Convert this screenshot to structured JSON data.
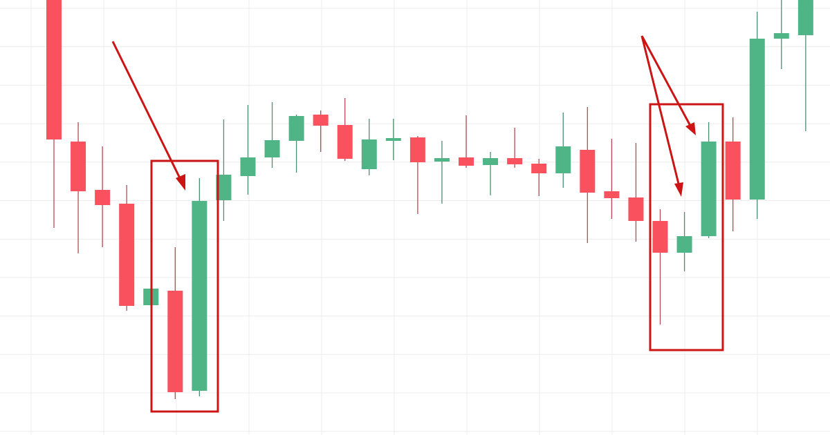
{
  "chart_data": {
    "type": "candlestick",
    "title": "",
    "xlabel": "",
    "ylabel": "",
    "grid": true,
    "colors": {
      "up": "#4fb587",
      "down": "#f9515e",
      "wick_up": "#4a8f6e",
      "wick_down": "#b54a55",
      "annotation": "#cc1414",
      "grid": "#ececec"
    },
    "ylim": [
      0,
      63
    ],
    "candles": [
      {
        "o": 64,
        "h": 64,
        "l": 30,
        "c": 42.8
      },
      {
        "o": 42.5,
        "h": 45.3,
        "l": 26.3,
        "c": 35.3
      },
      {
        "o": 35.5,
        "h": 41.8,
        "l": 27.2,
        "c": 33.3
      },
      {
        "o": 33.5,
        "h": 36.2,
        "l": 18,
        "c": 18.7
      },
      {
        "o": 18.8,
        "h": 21.2,
        "l": 18.8,
        "c": 21.2
      },
      {
        "o": 20.9,
        "h": 27.2,
        "l": 5.2,
        "c": 6.2
      },
      {
        "o": 6.4,
        "h": 37.2,
        "l": 5.6,
        "c": 33.9
      },
      {
        "o": 34,
        "h": 45.7,
        "l": 31,
        "c": 37.7
      },
      {
        "o": 37.5,
        "h": 47.8,
        "l": 34.8,
        "c": 40.2
      },
      {
        "o": 40.2,
        "h": 48.2,
        "l": 38.7,
        "c": 42.7
      },
      {
        "o": 42.6,
        "h": 46.4,
        "l": 38,
        "c": 46.2
      },
      {
        "o": 46.4,
        "h": 47,
        "l": 41,
        "c": 44.8
      },
      {
        "o": 44.9,
        "h": 48.8,
        "l": 39.7,
        "c": 40
      },
      {
        "o": 38.5,
        "h": 45.8,
        "l": 37.6,
        "c": 42.8
      },
      {
        "o": 42.6,
        "h": 45.8,
        "l": 39.8,
        "c": 43
      },
      {
        "o": 43.1,
        "h": 43.3,
        "l": 32,
        "c": 39.5
      },
      {
        "o": 39.6,
        "h": 42.6,
        "l": 33.5,
        "c": 40.1
      },
      {
        "o": 40.2,
        "h": 46.3,
        "l": 38.7,
        "c": 39
      },
      {
        "o": 39.1,
        "h": 41,
        "l": 34.7,
        "c": 40.1
      },
      {
        "o": 40.1,
        "h": 44.5,
        "l": 38.7,
        "c": 39.2
      },
      {
        "o": 39.3,
        "h": 40,
        "l": 34.6,
        "c": 37.9
      },
      {
        "o": 37.9,
        "h": 46.7,
        "l": 35.8,
        "c": 41.8
      },
      {
        "o": 41.3,
        "h": 47.5,
        "l": 27.8,
        "c": 35.1
      },
      {
        "o": 35.3,
        "h": 42.9,
        "l": 31.3,
        "c": 34.3
      },
      {
        "o": 34.4,
        "h": 42.3,
        "l": 28,
        "c": 31
      },
      {
        "o": 31,
        "h": 32.7,
        "l": 16,
        "c": 26.4
      },
      {
        "o": 26.4,
        "h": 32.3,
        "l": 23.7,
        "c": 28.8
      },
      {
        "o": 28.8,
        "h": 45.3,
        "l": 28.5,
        "c": 42.5
      },
      {
        "o": 42.5,
        "h": 46,
        "l": 29.5,
        "c": 34.1
      },
      {
        "o": 34.1,
        "h": 61.3,
        "l": 31.3,
        "c": 57.4
      },
      {
        "o": 57.4,
        "h": 64,
        "l": 53,
        "c": 58.2
      },
      {
        "o": 57.9,
        "h": 64,
        "l": 44,
        "c": 64
      }
    ]
  }
}
